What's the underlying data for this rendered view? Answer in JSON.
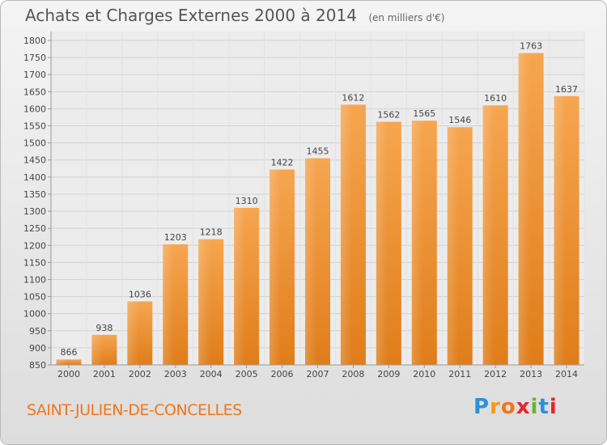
{
  "title": "Achats et Charges Externes 2000 à 2014",
  "unit_label": "(en milliers d'€)",
  "location": "SAINT-JULIEN-DE-CONCELLES",
  "logo": {
    "letters": [
      "P",
      "r",
      "o",
      "x",
      "i",
      "t",
      "i"
    ],
    "colors": [
      "#2f8fd8",
      "#f39a1e",
      "#f0761a",
      "#e2262a",
      "#6ab42d",
      "#2f8fd8",
      "#e2262a"
    ]
  },
  "colors": {
    "bar_light": "#f6a650",
    "bar_dark": "#e07d1a",
    "accent": "#f0761a"
  },
  "chart_data": {
    "type": "bar",
    "title": "Achats et Charges Externes 2000 à 2014",
    "xlabel": "",
    "ylabel": "(en milliers d'€)",
    "categories": [
      "2000",
      "2001",
      "2002",
      "2003",
      "2004",
      "2005",
      "2006",
      "2007",
      "2008",
      "2009",
      "2010",
      "2011",
      "2012",
      "2013",
      "2014"
    ],
    "values": [
      866,
      938,
      1036,
      1203,
      1218,
      1310,
      1422,
      1455,
      1612,
      1562,
      1565,
      1546,
      1610,
      1763,
      1637
    ],
    "ylim": [
      850,
      1800
    ],
    "yticks": [
      850,
      900,
      950,
      1000,
      1050,
      1100,
      1150,
      1200,
      1250,
      1300,
      1350,
      1400,
      1450,
      1500,
      1550,
      1600,
      1650,
      1700,
      1750,
      1800
    ],
    "grid": true
  }
}
